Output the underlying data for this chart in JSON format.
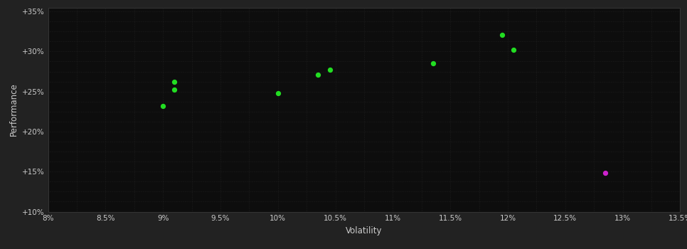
{
  "background_color": "#222222",
  "plot_bg_color": "#0d0d0d",
  "grid_color": "#444444",
  "text_color": "#cccccc",
  "xlabel": "Volatility",
  "ylabel": "Performance",
  "x_min": 0.08,
  "x_max": 0.135,
  "y_min": 0.1,
  "y_max": 0.355,
  "x_ticks": [
    0.08,
    0.085,
    0.09,
    0.095,
    0.1,
    0.105,
    0.11,
    0.115,
    0.12,
    0.125,
    0.13,
    0.135
  ],
  "x_tick_labels": [
    "8%",
    "8.5%",
    "9%",
    "9.5%",
    "10%",
    "10.5%",
    "11%",
    "11.5%",
    "12%",
    "12.5%",
    "13%",
    "13.5%"
  ],
  "y_ticks": [
    0.1,
    0.15,
    0.2,
    0.25,
    0.3,
    0.35
  ],
  "y_tick_labels": [
    "+10%",
    "+15%",
    "+20%",
    "+25%",
    "+30%",
    "+35%"
  ],
  "green_points": [
    [
      0.09,
      0.232
    ],
    [
      0.091,
      0.252
    ],
    [
      0.091,
      0.262
    ],
    [
      0.1,
      0.248
    ],
    [
      0.1035,
      0.271
    ],
    [
      0.1045,
      0.277
    ],
    [
      0.1135,
      0.285
    ],
    [
      0.1195,
      0.321
    ],
    [
      0.1205,
      0.302
    ]
  ],
  "magenta_points": [
    [
      0.1285,
      0.148
    ]
  ],
  "point_size": 18,
  "green_color": "#22dd22",
  "magenta_color": "#cc22cc",
  "minor_grid_count": 4
}
